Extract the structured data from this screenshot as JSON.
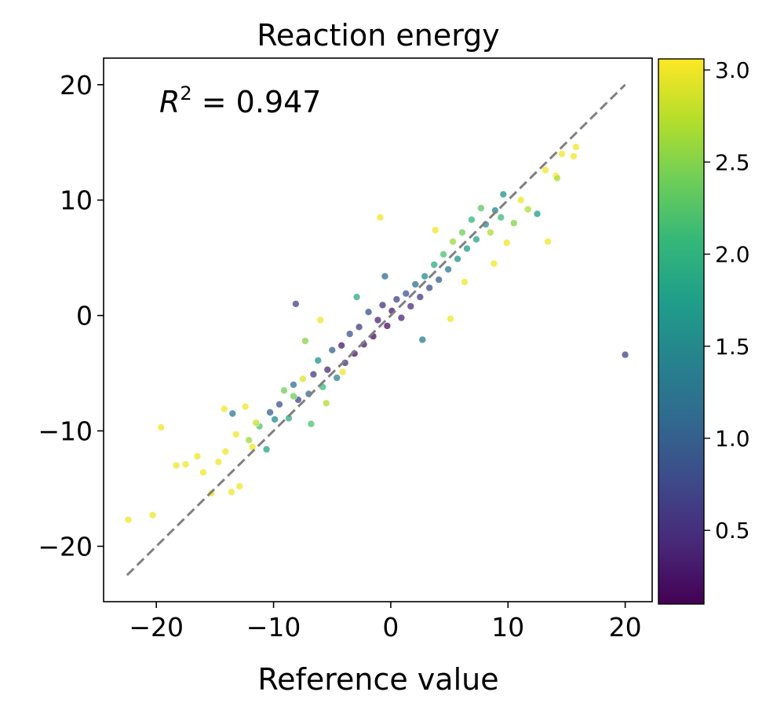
{
  "chart_data": {
    "type": "scatter",
    "title": "Reaction energy",
    "xlabel": "Reference value",
    "ylabel": "",
    "xlim": [
      -24.5,
      22.3
    ],
    "ylim": [
      -24.8,
      22.3
    ],
    "x_ticks": [
      -20,
      -10,
      0,
      10,
      20
    ],
    "y_ticks": [
      -20,
      -10,
      0,
      10,
      20
    ],
    "x_tick_labels": [
      "−20",
      "−10",
      "0",
      "10",
      "20"
    ],
    "y_tick_labels": [
      "−20",
      "−10",
      "0",
      "10",
      "20"
    ],
    "grid": false,
    "annotation": {
      "prefix": "R",
      "sup": "2",
      "text": " = 0.947"
    },
    "reference_line": {
      "style": "dashed",
      "color": "#808080",
      "from": [
        -22.5,
        -22.5
      ],
      "to": [
        20,
        20
      ]
    },
    "colorbar": {
      "colormap": "viridis",
      "range": [
        0.1,
        3.06
      ],
      "ticks": [
        0.5,
        1.0,
        1.5,
        2.0,
        2.5,
        3.0
      ],
      "tick_labels": [
        "0.5",
        "1.0",
        "1.5",
        "2.0",
        "2.5",
        "3.0"
      ],
      "stops": [
        "#440154",
        "#482878",
        "#3e4989",
        "#31688e",
        "#26828e",
        "#1f9e89",
        "#35b779",
        "#6ece58",
        "#b5de2b",
        "#fde725"
      ]
    },
    "points": {
      "columns": [
        "x",
        "y",
        "color_value"
      ],
      "values": [
        [
          -22.4,
          -17.7,
          3.0
        ],
        [
          -20.3,
          -17.3,
          3.0
        ],
        [
          -19.6,
          -9.7,
          3.0
        ],
        [
          -18.3,
          -13.0,
          3.0
        ],
        [
          -17.5,
          -12.9,
          3.0
        ],
        [
          -16.5,
          -12.2,
          3.0
        ],
        [
          -16.0,
          -13.6,
          3.0
        ],
        [
          -15.3,
          -15.4,
          3.0
        ],
        [
          -14.7,
          -12.7,
          3.0
        ],
        [
          -14.1,
          -11.8,
          3.0
        ],
        [
          -13.6,
          -15.3,
          3.0
        ],
        [
          -13.2,
          -10.3,
          3.0
        ],
        [
          -12.9,
          -14.8,
          3.0
        ],
        [
          -12.4,
          -7.9,
          3.0
        ],
        [
          -14.2,
          -8.1,
          3.0
        ],
        [
          -13.5,
          -8.5,
          1.3
        ],
        [
          -12.1,
          -10.8,
          2.6
        ],
        [
          -11.8,
          -11.4,
          3.0
        ],
        [
          -11.2,
          -9.6,
          2.2
        ],
        [
          -10.6,
          -11.6,
          1.8
        ],
        [
          -10.3,
          -8.4,
          1.0
        ],
        [
          -9.9,
          -9.0,
          1.5
        ],
        [
          -9.5,
          -7.7,
          0.9
        ],
        [
          -9.1,
          -6.5,
          2.4
        ],
        [
          -8.7,
          -8.9,
          1.9
        ],
        [
          -8.3,
          -6.0,
          1.2
        ],
        [
          -7.9,
          -7.3,
          0.7
        ],
        [
          -8.1,
          1.0,
          0.7
        ],
        [
          -7.5,
          -5.5,
          2.9
        ],
        [
          -7.0,
          -6.8,
          1.1
        ],
        [
          -6.6,
          -5.1,
          0.6
        ],
        [
          -6.2,
          -3.9,
          1.6
        ],
        [
          -5.8,
          -6.2,
          2.1
        ],
        [
          -5.4,
          -4.7,
          0.4
        ],
        [
          -5.0,
          -3.0,
          1.0
        ],
        [
          -4.6,
          -5.4,
          1.4
        ],
        [
          -4.2,
          -2.6,
          0.3
        ],
        [
          -3.9,
          -4.1,
          0.5
        ],
        [
          -3.5,
          -1.6,
          0.9
        ],
        [
          -3.1,
          -3.3,
          0.2
        ],
        [
          -2.7,
          -1.0,
          0.6
        ],
        [
          -2.3,
          -2.5,
          0.3
        ],
        [
          -1.9,
          0.3,
          0.8
        ],
        [
          -1.5,
          -1.8,
          0.2
        ],
        [
          -1.1,
          -0.4,
          0.4
        ],
        [
          -0.7,
          0.9,
          0.5
        ],
        [
          -0.3,
          -0.9,
          0.2
        ],
        [
          0.1,
          0.4,
          0.3
        ],
        [
          0.5,
          1.4,
          0.7
        ],
        [
          0.9,
          -0.2,
          0.4
        ],
        [
          1.3,
          1.9,
          0.9
        ],
        [
          1.7,
          0.8,
          0.5
        ],
        [
          2.1,
          2.7,
          1.2
        ],
        [
          2.5,
          1.6,
          0.6
        ],
        [
          2.9,
          3.4,
          1.5
        ],
        [
          3.3,
          2.4,
          0.8
        ],
        [
          3.7,
          4.4,
          1.9
        ],
        [
          4.1,
          3.1,
          1.0
        ],
        [
          4.5,
          5.3,
          2.2
        ],
        [
          4.9,
          4.0,
          1.3
        ],
        [
          5.3,
          6.4,
          2.6
        ],
        [
          5.7,
          4.9,
          1.6
        ],
        [
          6.1,
          7.2,
          2.4
        ],
        [
          6.5,
          5.8,
          1.7
        ],
        [
          6.9,
          8.3,
          2.0
        ],
        [
          7.3,
          6.6,
          1.8
        ],
        [
          7.7,
          9.3,
          2.3
        ],
        [
          8.1,
          7.9,
          1.5
        ],
        [
          8.5,
          7.2,
          2.7
        ],
        [
          8.9,
          9.1,
          1.4
        ],
        [
          9.4,
          8.5,
          2.1
        ],
        [
          9.9,
          6.3,
          3.0
        ],
        [
          10.5,
          8.0,
          2.5
        ],
        [
          11.1,
          10.0,
          3.0
        ],
        [
          11.7,
          9.2,
          2.7
        ],
        [
          12.5,
          8.8,
          1.7
        ],
        [
          13.4,
          6.4,
          3.0
        ],
        [
          13.2,
          12.6,
          3.0
        ],
        [
          14.1,
          12.1,
          3.0
        ],
        [
          14.6,
          14.0,
          3.0
        ],
        [
          15.6,
          13.8,
          3.0
        ],
        [
          15.8,
          14.6,
          3.0
        ],
        [
          14.2,
          11.9,
          2.7
        ],
        [
          -0.9,
          8.5,
          3.0
        ],
        [
          20.0,
          -3.4,
          0.7
        ],
        [
          5.1,
          -0.3,
          3.0
        ],
        [
          -6.0,
          -0.4,
          3.0
        ],
        [
          -4.1,
          -4.9,
          3.0
        ],
        [
          -8.3,
          -7.0,
          2.4
        ],
        [
          -11.5,
          -9.3,
          2.8
        ],
        [
          3.8,
          7.4,
          3.0
        ],
        [
          8.8,
          4.5,
          3.0
        ],
        [
          -7.3,
          -2.2,
          2.5
        ],
        [
          -2.9,
          1.6,
          1.9
        ],
        [
          -6.8,
          -9.4,
          2.2
        ],
        [
          -5.5,
          -7.6,
          2.7
        ],
        [
          -0.5,
          3.4,
          1.1
        ],
        [
          2.7,
          -2.1,
          1.3
        ],
        [
          6.3,
          2.9,
          3.0
        ],
        [
          9.6,
          10.5,
          1.6
        ]
      ]
    }
  }
}
